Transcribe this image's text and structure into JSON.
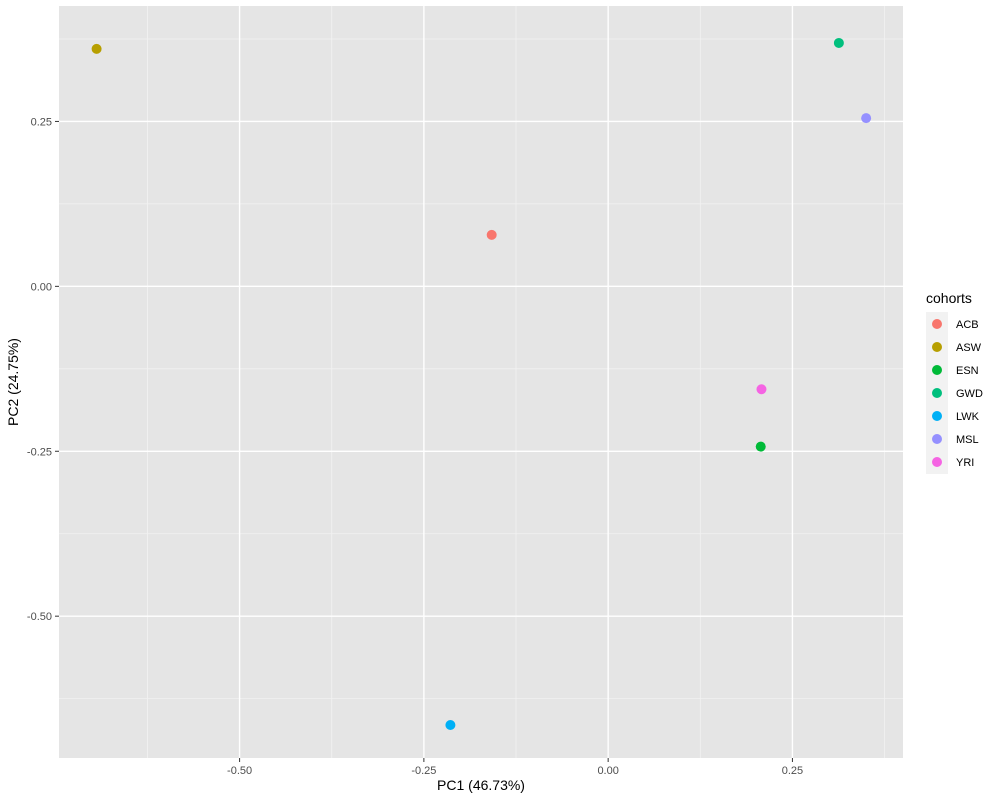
{
  "chart_data": {
    "type": "scatter",
    "title": "",
    "xlabel": "PC1 (46.73%)",
    "ylabel": "PC2 (24.75%)",
    "xlim": [
      -0.745,
      0.4
    ],
    "ylim": [
      -0.715,
      0.425
    ],
    "x_ticks": [
      -0.5,
      -0.25,
      0.0,
      0.25
    ],
    "x_tick_labels": [
      "-0.50",
      "-0.25",
      "0.00",
      "0.25"
    ],
    "y_ticks": [
      -0.5,
      -0.25,
      0.0,
      0.25
    ],
    "y_tick_labels": [
      "-0.50",
      "-0.25",
      "0.00",
      "0.25"
    ],
    "grid": true,
    "legend": {
      "title": "cohorts",
      "position": "right"
    },
    "series": [
      {
        "name": "ACB",
        "color": "#F8766D",
        "x": [
          -0.158
        ],
        "y": [
          0.078
        ]
      },
      {
        "name": "ASW",
        "color": "#B79F00",
        "x": [
          -0.694
        ],
        "y": [
          0.36
        ]
      },
      {
        "name": "ESN",
        "color": "#00BA38",
        "x": [
          0.207
        ],
        "y": [
          -0.243
        ]
      },
      {
        "name": "GWD",
        "color": "#00BF7D",
        "x": [
          0.313
        ],
        "y": [
          0.369
        ]
      },
      {
        "name": "LWK",
        "color": "#00B0F6",
        "x": [
          -0.214
        ],
        "y": [
          -0.665
        ]
      },
      {
        "name": "MSL",
        "color": "#9590FF",
        "x": [
          0.35
        ],
        "y": [
          0.255
        ]
      },
      {
        "name": "YRI",
        "color": "#F564E3",
        "x": [
          0.208
        ],
        "y": [
          -0.156
        ]
      }
    ]
  }
}
